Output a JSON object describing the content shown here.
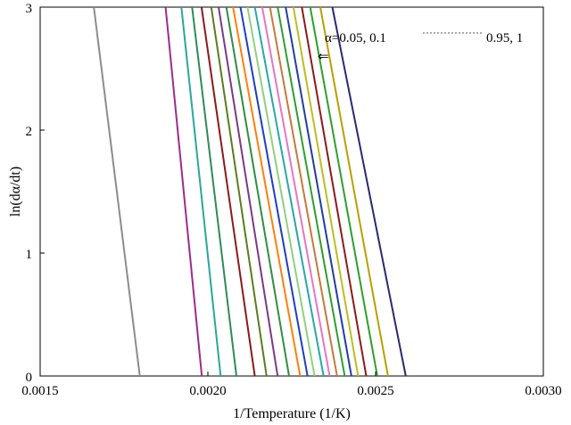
{
  "chart_data": {
    "type": "line",
    "xlabel": "1/Temperature (1/K)",
    "ylabel": "ln(dα/dt)",
    "xlim": [
      0.0015,
      0.003
    ],
    "ylim": [
      0,
      3
    ],
    "x_ticks": [
      "0.0015",
      "0.0020",
      "0.0025",
      "0.0030"
    ],
    "y_ticks": [
      "0",
      "1",
      "2",
      "3"
    ],
    "grid": false,
    "annotation": {
      "text_start": "α=0.05, 0.1",
      "text_end": "0.95, 1",
      "arrow": "⇐"
    },
    "series": [
      {
        "color": "#8c8c8c",
        "points": [
          [
            0.001797,
            0
          ],
          [
            0.00166,
            3
          ]
        ]
      },
      {
        "color": "#9b2d8a",
        "points": [
          [
            0.001982,
            0
          ],
          [
            0.001874,
            3
          ]
        ]
      },
      {
        "color": "#2aa79b",
        "points": [
          [
            0.002038,
            0
          ],
          [
            0.001921,
            3
          ]
        ]
      },
      {
        "color": "#2e8b57",
        "points": [
          [
            0.002085,
            0
          ],
          [
            0.001953,
            3
          ]
        ]
      },
      {
        "color": "#8b1a1a",
        "points": [
          [
            0.00214,
            0
          ],
          [
            0.001981,
            3
          ]
        ]
      },
      {
        "color": "#5a7d1f",
        "points": [
          [
            0.002175,
            0
          ],
          [
            0.00201,
            3
          ]
        ]
      },
      {
        "color": "#7a3a86",
        "points": [
          [
            0.002208,
            0
          ],
          [
            0.002032,
            3
          ]
        ]
      },
      {
        "color": "#2f8f3f",
        "points": [
          [
            0.002242,
            0
          ],
          [
            0.002055,
            3
          ]
        ]
      },
      {
        "color": "#ff7f0e",
        "points": [
          [
            0.002275,
            0
          ],
          [
            0.002075,
            3
          ]
        ]
      },
      {
        "color": "#1f3fbf",
        "points": [
          [
            0.002297,
            0
          ],
          [
            0.002097,
            3
          ]
        ]
      },
      {
        "color": "#8fd17f",
        "points": [
          [
            0.002318,
            0
          ],
          [
            0.002118,
            3
          ]
        ]
      },
      {
        "color": "#2aa7a7",
        "points": [
          [
            0.002345,
            0
          ],
          [
            0.00214,
            3
          ]
        ]
      },
      {
        "color": "#e377c2",
        "points": [
          [
            0.002363,
            0
          ],
          [
            0.002162,
            3
          ]
        ]
      },
      {
        "color": "#c47a3a",
        "points": [
          [
            0.002385,
            0
          ],
          [
            0.002185,
            3
          ]
        ]
      },
      {
        "color": "#2ca02c",
        "points": [
          [
            0.002408,
            0
          ],
          [
            0.002208,
            3
          ]
        ]
      },
      {
        "color": "#1f3f9f",
        "points": [
          [
            0.002428,
            0
          ],
          [
            0.002232,
            3
          ]
        ]
      },
      {
        "color": "#bcbd22",
        "points": [
          [
            0.002448,
            0
          ],
          [
            0.002255,
            3
          ]
        ]
      },
      {
        "color": "#8b1a1a",
        "points": [
          [
            0.002472,
            0
          ],
          [
            0.00228,
            3
          ]
        ]
      },
      {
        "color": "#2ca02c",
        "points": [
          [
            0.002505,
            0
          ],
          [
            0.002305,
            3
          ]
        ]
      },
      {
        "color": "#b8a000",
        "points": [
          [
            0.002537,
            0
          ],
          [
            0.002335,
            3
          ]
        ]
      },
      {
        "color": "#2a2a70",
        "points": [
          [
            0.00259,
            0
          ],
          [
            0.002371,
            3
          ]
        ]
      }
    ]
  }
}
